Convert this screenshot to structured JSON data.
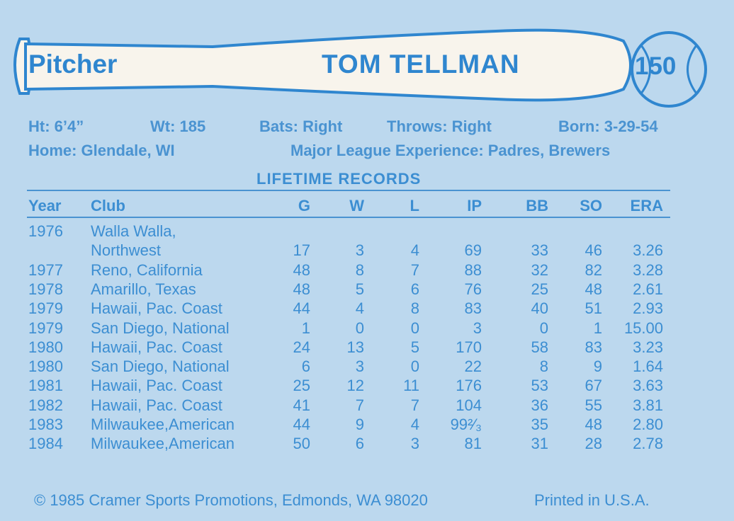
{
  "header": {
    "position": "Pitcher",
    "player_name": "TOM TELLMAN",
    "card_number": "150"
  },
  "bio": {
    "height": "Ht: 6’4”",
    "weight": "Wt: 185",
    "bats": "Bats: Right",
    "throws": "Throws: Right",
    "born": "Born: 3-29-54",
    "home": "Home: Glendale, WI",
    "experience": "Major League Experience: Padres, Brewers"
  },
  "records": {
    "title": "LIFETIME RECORDS",
    "headers": [
      "Year",
      "Club",
      "G",
      "W",
      "L",
      "IP",
      "BB",
      "SO",
      "ERA"
    ],
    "rows": [
      {
        "year": "1976",
        "club": "Walla Walla,",
        "club2": "Northwest",
        "g": "17",
        "w": "3",
        "l": "4",
        "ip": "69",
        "bb": "33",
        "so": "46",
        "era": "3.26"
      },
      {
        "year": "1977",
        "club": "Reno, California",
        "g": "48",
        "w": "8",
        "l": "7",
        "ip": "88",
        "bb": "32",
        "so": "82",
        "era": "3.28"
      },
      {
        "year": "1978",
        "club": "Amarillo, Texas",
        "g": "48",
        "w": "5",
        "l": "6",
        "ip": "76",
        "bb": "25",
        "so": "48",
        "era": "2.61"
      },
      {
        "year": "1979",
        "club": "Hawaii, Pac. Coast",
        "g": "44",
        "w": "4",
        "l": "8",
        "ip": "83",
        "bb": "40",
        "so": "51",
        "era": "2.93"
      },
      {
        "year": "1979",
        "club": "San Diego, National",
        "g": "1",
        "w": "0",
        "l": "0",
        "ip": "3",
        "bb": "0",
        "so": "1",
        "era": "15.00"
      },
      {
        "year": "1980",
        "club": "Hawaii, Pac. Coast",
        "g": "24",
        "w": "13",
        "l": "5",
        "ip": "170",
        "bb": "58",
        "so": "83",
        "era": "3.23"
      },
      {
        "year": "1980",
        "club": "San Diego, National",
        "g": "6",
        "w": "3",
        "l": "0",
        "ip": "22",
        "bb": "8",
        "so": "9",
        "era": "1.64"
      },
      {
        "year": "1981",
        "club": "Hawaii, Pac. Coast",
        "g": "25",
        "w": "12",
        "l": "11",
        "ip": "176",
        "bb": "53",
        "so": "67",
        "era": "3.63"
      },
      {
        "year": "1982",
        "club": "Hawaii, Pac. Coast",
        "g": "41",
        "w": "7",
        "l": "7",
        "ip": "104",
        "bb": "36",
        "so": "55",
        "era": "3.81"
      },
      {
        "year": "1983",
        "club": "Milwaukee,American",
        "g": "44",
        "w": "9",
        "l": "4",
        "ip": "99²⁄₃",
        "bb": "35",
        "so": "48",
        "era": "2.80"
      },
      {
        "year": "1984",
        "club": "Milwaukee,American",
        "g": "50",
        "w": "6",
        "l": "3",
        "ip": "81",
        "bb": "31",
        "so": "28",
        "era": "2.78"
      }
    ]
  },
  "footer": {
    "copyright": "© 1985 Cramer Sports Promotions, Edmonds, WA 98020",
    "printed": "Printed in U.S.A."
  },
  "colors": {
    "card": "#bcd8ee",
    "ink": "#2f86cf",
    "bat_fill": "#f8f4ec"
  }
}
